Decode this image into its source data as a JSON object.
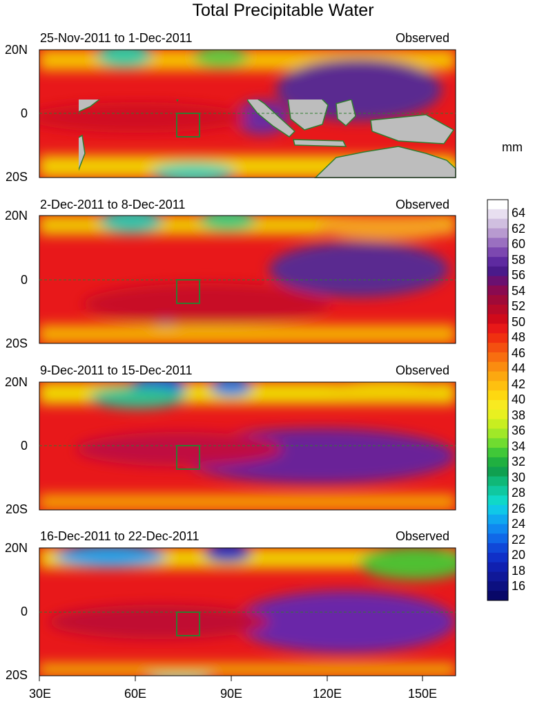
{
  "title": "Total Precipitable Water",
  "panels": [
    {
      "period": "25-Nov-2011 to 1-Dec-2011",
      "status": "Observed"
    },
    {
      "period": "2-Dec-2011 to 8-Dec-2011",
      "status": "Observed"
    },
    {
      "period": "9-Dec-2011 to 15-Dec-2011",
      "status": "Observed"
    },
    {
      "period": "16-Dec-2011 to 22-Dec-2011",
      "status": "Observed"
    }
  ],
  "lat_labels": [
    "20N",
    "0",
    "20S"
  ],
  "lon_labels": [
    "30E",
    "60E",
    "90E",
    "120E",
    "150E"
  ],
  "colorbar": {
    "unit": "mm",
    "labels": [
      "64",
      "62",
      "60",
      "58",
      "56",
      "54",
      "52",
      "50",
      "48",
      "46",
      "44",
      "42",
      "40",
      "38",
      "36",
      "34",
      "32",
      "30",
      "28",
      "26",
      "24",
      "22",
      "20",
      "18",
      "16"
    ]
  },
  "colors": {
    "land": "#bdbdbd",
    "coast": "#2f7d2f",
    "box": "#2f7d2f"
  }
}
